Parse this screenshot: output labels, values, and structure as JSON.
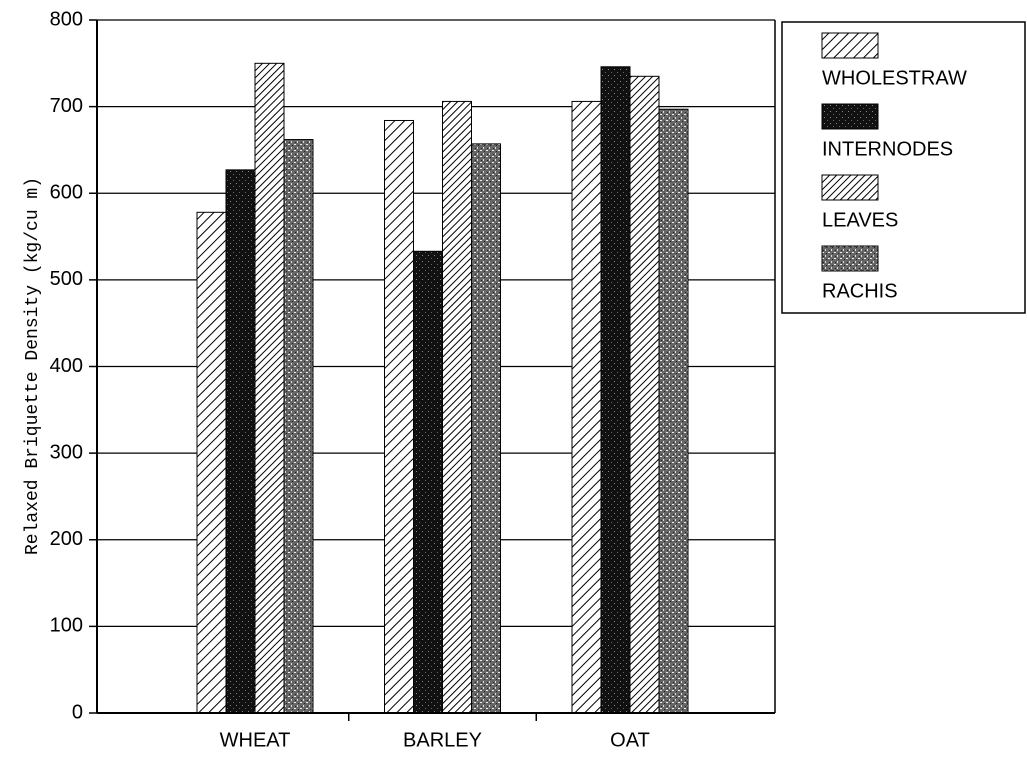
{
  "chart_data": {
    "type": "bar",
    "y_label": "Relaxed Briquette Density (kg/cu m)",
    "categories": [
      "WHEAT",
      "BARLEY",
      "OAT"
    ],
    "series": [
      {
        "name": "WHOLESTRAW",
        "color": "#000000",
        "pattern": "hatch",
        "values": [
          578,
          684,
          706
        ]
      },
      {
        "name": "INTERNODES",
        "color": "#000000",
        "pattern": "dark",
        "values": [
          627,
          533,
          746
        ]
      },
      {
        "name": "LEAVES",
        "color": "#000000",
        "pattern": "dense-hatch",
        "values": [
          750,
          706,
          735
        ]
      },
      {
        "name": "RACHIS",
        "color": "#000000",
        "pattern": "speckle",
        "values": [
          662,
          657,
          697
        ]
      }
    ],
    "ylim": [
      0,
      800
    ],
    "yticks": [
      0,
      100,
      200,
      300,
      400,
      500,
      600,
      700,
      800
    ],
    "grid": true,
    "legend": "upper right"
  }
}
